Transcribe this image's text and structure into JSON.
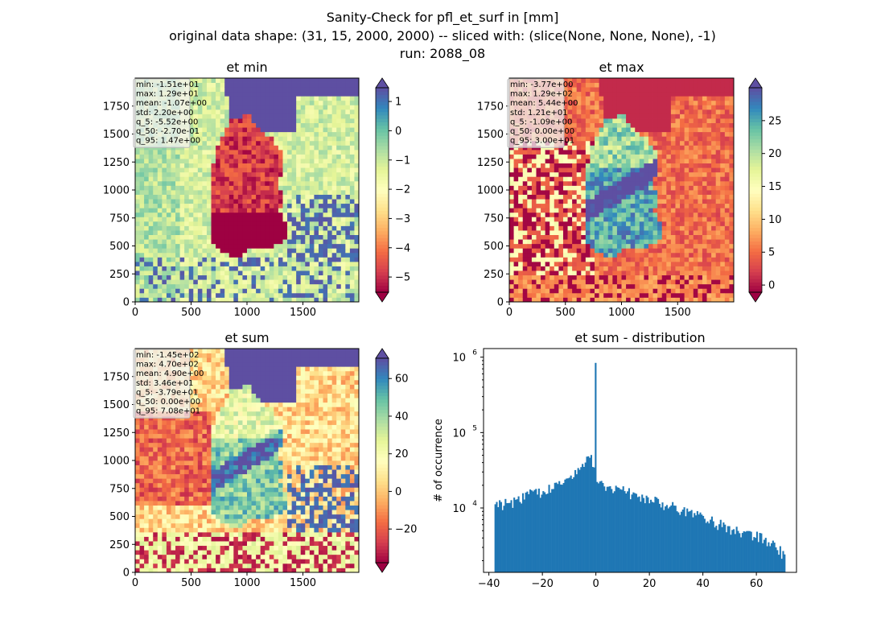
{
  "figure": {
    "suptitle_lines": [
      "Sanity-Check for pfl_et_surf in [mm]",
      "original data shape: (31, 15, 2000, 2000) -- sliced with: (slice(None, None, None), -1)",
      "run: 2088_08"
    ]
  },
  "chart_data": [
    {
      "type": "heatmap",
      "title": "et min",
      "colormap": "Spectral",
      "x_ticks": [
        0,
        500,
        1000,
        1500
      ],
      "y_ticks": [
        0,
        250,
        500,
        750,
        1000,
        1250,
        1500,
        1750
      ],
      "xlim": [
        0,
        2000
      ],
      "ylim": [
        0,
        2000
      ],
      "colorbar": {
        "vmin": -5.52,
        "vmax": 1.47,
        "ticks": [
          1,
          0,
          -1,
          -2,
          -3,
          -4,
          -5
        ],
        "extend": "both"
      },
      "stats": [
        "min: -1.51e+01",
        "max: 1.29e+01",
        "mean: -1.07e+00",
        "std: 2.20e+00",
        "q_5: -5.52e+00",
        "q_50: -2.70e-01",
        "q_95: 1.47e+00"
      ]
    },
    {
      "type": "heatmap",
      "title": "et max",
      "colormap": "Spectral",
      "x_ticks": [
        0,
        500,
        1000,
        1500
      ],
      "y_ticks": [
        0,
        250,
        500,
        750,
        1000,
        1250,
        1500,
        1750
      ],
      "xlim": [
        0,
        2000
      ],
      "ylim": [
        0,
        2000
      ],
      "colorbar": {
        "vmin": -1.09,
        "vmax": 30.0,
        "ticks": [
          25,
          20,
          15,
          10,
          5,
          0
        ],
        "extend": "both"
      },
      "stats": [
        "min: -3.77e+00",
        "max: 1.29e+02",
        "mean: 5.44e+00",
        "std: 1.21e+01",
        "q_5: -1.09e+00",
        "q_50: 0.00e+00",
        "q_95: 3.00e+01"
      ]
    },
    {
      "type": "heatmap",
      "title": "et sum",
      "colormap": "Spectral",
      "x_ticks": [
        0,
        500,
        1000,
        1500
      ],
      "y_ticks": [
        0,
        250,
        500,
        750,
        1000,
        1250,
        1500,
        1750
      ],
      "xlim": [
        0,
        2000
      ],
      "ylim": [
        0,
        2000
      ],
      "colorbar": {
        "vmin": -37.9,
        "vmax": 70.8,
        "ticks": [
          60,
          40,
          20,
          0,
          -20
        ],
        "extend": "both"
      },
      "stats": [
        "min: -1.45e+02",
        "max: 4.70e+02",
        "mean: 4.90e+00",
        "std: 3.46e+01",
        "q_5: -3.79e+01",
        "q_50: 0.00e+00",
        "q_95: 7.08e+01"
      ]
    },
    {
      "type": "bar",
      "title": "et sum - distribution",
      "ylabel": "# of occurrence",
      "yscale": "log",
      "xlim": [
        -42,
        75
      ],
      "ylim": [
        1400,
        1300000
      ],
      "x_ticks": [
        -40,
        -20,
        0,
        20,
        40,
        60
      ],
      "y_ticks": [
        {
          "value": 10000,
          "base": "10",
          "exp": "4"
        },
        {
          "value": 100000,
          "base": "10",
          "exp": "5"
        },
        {
          "value": 1000000,
          "base": "10",
          "exp": "6"
        }
      ],
      "color": "#1f77b4",
      "bins": {
        "start": -37.9,
        "end": 70.8,
        "count": 200
      },
      "envelope": [
        [
          -37.9,
          10500
        ],
        [
          -35,
          11000
        ],
        [
          -30,
          12500
        ],
        [
          -25,
          15000
        ],
        [
          -20,
          16500
        ],
        [
          -15,
          19000
        ],
        [
          -10,
          24000
        ],
        [
          -5,
          36000
        ],
        [
          -3,
          50000
        ],
        [
          -1,
          40000
        ],
        [
          0.3,
          22000
        ],
        [
          2,
          20000
        ],
        [
          5,
          19000
        ],
        [
          10,
          17000
        ],
        [
          15,
          15000
        ],
        [
          20,
          13000
        ],
        [
          25,
          11500
        ],
        [
          30,
          10000
        ],
        [
          35,
          8500
        ],
        [
          40,
          7500
        ],
        [
          45,
          6300
        ],
        [
          50,
          5300
        ],
        [
          55,
          4600
        ],
        [
          60,
          4400
        ],
        [
          65,
          3400
        ],
        [
          68,
          3000
        ],
        [
          70.8,
          2200
        ]
      ],
      "spike": {
        "x": 0,
        "count": 840000
      }
    }
  ]
}
